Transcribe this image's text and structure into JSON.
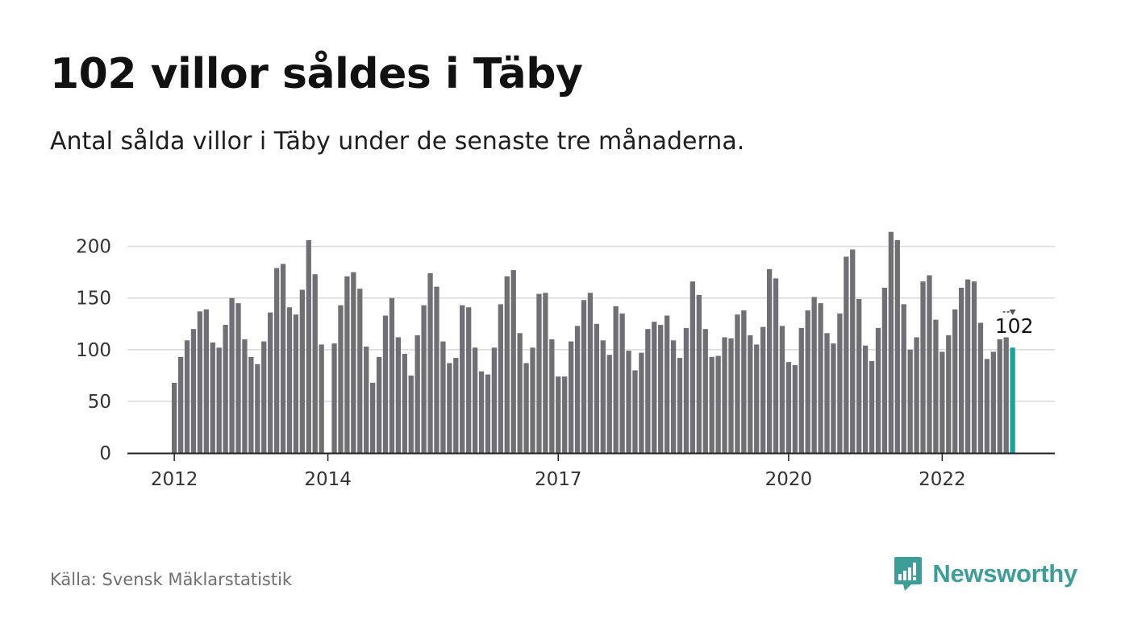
{
  "header": {
    "title": "102 villor såldes i Täby",
    "subtitle": "Antal sålda villor i Täby under de senaste tre månaderna."
  },
  "footer": {
    "source": "Källa: Svensk Mäklarstatistik",
    "brand": "Newsworthy",
    "brand_icon": "bar-chart-speech-bubble-icon"
  },
  "colors": {
    "bar": "#707074",
    "highlight": "#1aa396",
    "grid": "#d9d9d9",
    "axis": "#222222",
    "brand": "#3d9d97"
  },
  "chart_data": {
    "type": "bar",
    "title": "",
    "xlabel": "",
    "ylabel": "",
    "ylim": [
      0,
      220
    ],
    "yticks": [
      0,
      50,
      100,
      150,
      200
    ],
    "xticks": [
      {
        "label": "2012",
        "index": 0
      },
      {
        "label": "2014",
        "index": 24
      },
      {
        "label": "2017",
        "index": 60
      },
      {
        "label": "2020",
        "index": 96
      },
      {
        "label": "2022",
        "index": 120
      }
    ],
    "grid": true,
    "series": [
      {
        "values": [
          68,
          93,
          109,
          120,
          137,
          139,
          107,
          102,
          124,
          150,
          145,
          110,
          93,
          86,
          108,
          136,
          179,
          183,
          141,
          134,
          158,
          206,
          173,
          105,
          0,
          106,
          143,
          171,
          175,
          159,
          103,
          68,
          93,
          133,
          150,
          112,
          96,
          75,
          114,
          143,
          174,
          161,
          108,
          87,
          92,
          143,
          141,
          102,
          79,
          76,
          102,
          144,
          171,
          177,
          116,
          87,
          102,
          154,
          155,
          110,
          74,
          74,
          108,
          123,
          148,
          155,
          125,
          109,
          95,
          142,
          135,
          99,
          80,
          97,
          120,
          127,
          124,
          133,
          109,
          92,
          121,
          166,
          153,
          120,
          93,
          94,
          112,
          111,
          134,
          138,
          114,
          105,
          122,
          178,
          169,
          123,
          88,
          85,
          121,
          138,
          151,
          145,
          116,
          106,
          135,
          190,
          197,
          149,
          104,
          89,
          121,
          160,
          214,
          206,
          144,
          100,
          112,
          166,
          172,
          129,
          98,
          114,
          139,
          160,
          168,
          166,
          126,
          91,
          98,
          110,
          112,
          102
        ]
      }
    ],
    "highlight": {
      "index": 131,
      "value": 102,
      "label": "102"
    }
  }
}
